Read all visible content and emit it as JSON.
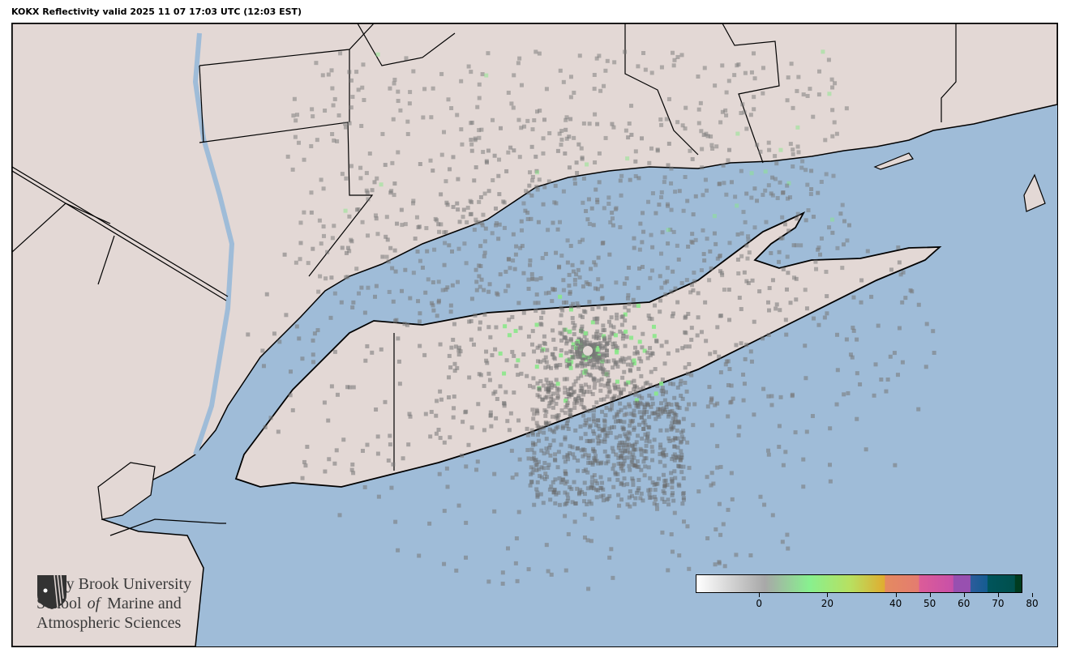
{
  "title": "KOKX Reflectivity valid 2025 11 07 17:03 UTC (12:03 EST)",
  "map": {
    "radar_site": "KOKX",
    "colors": {
      "land": "#e3d8d5",
      "water": "#9fbcd8",
      "border": "#000000",
      "river": "#9fbcd8"
    }
  },
  "logo": {
    "line1": "Stony Brook University",
    "line2_a": "School ",
    "line2_b": "of",
    "line2_c": " Marine and",
    "line3": "Atmospheric Sciences"
  },
  "colorbar": {
    "range": [
      -15,
      80
    ],
    "ticks": [
      {
        "value": 0,
        "label": "0"
      },
      {
        "value": 20,
        "label": "20"
      },
      {
        "value": 40,
        "label": "40"
      },
      {
        "value": 50,
        "label": "50"
      },
      {
        "value": 60,
        "label": "60"
      },
      {
        "value": 70,
        "label": "70"
      },
      {
        "value": 80,
        "label": "80"
      }
    ],
    "stops": [
      {
        "value": -15,
        "color": "#ffffff"
      },
      {
        "value": 5,
        "color": "#a8a8a8"
      },
      {
        "value": 18,
        "color": "#88f08f"
      },
      {
        "value": 30,
        "color": "#b8e060"
      },
      {
        "value": 40,
        "color": "#e0ac30"
      },
      {
        "value": 40.1,
        "color": "#e48a60"
      },
      {
        "value": 50,
        "color": "#e47c70"
      },
      {
        "value": 50.1,
        "color": "#dc5c98"
      },
      {
        "value": 60,
        "color": "#c850a8"
      },
      {
        "value": 60.1,
        "color": "#9850b0"
      },
      {
        "value": 65,
        "color": "#9850b0"
      },
      {
        "value": 65.1,
        "color": "#2c5c9c"
      },
      {
        "value": 70,
        "color": "#145c90"
      },
      {
        "value": 70.1,
        "color": "#00545c"
      },
      {
        "value": 78,
        "color": "#00504c"
      },
      {
        "value": 78.1,
        "color": "#003c20"
      }
    ]
  }
}
